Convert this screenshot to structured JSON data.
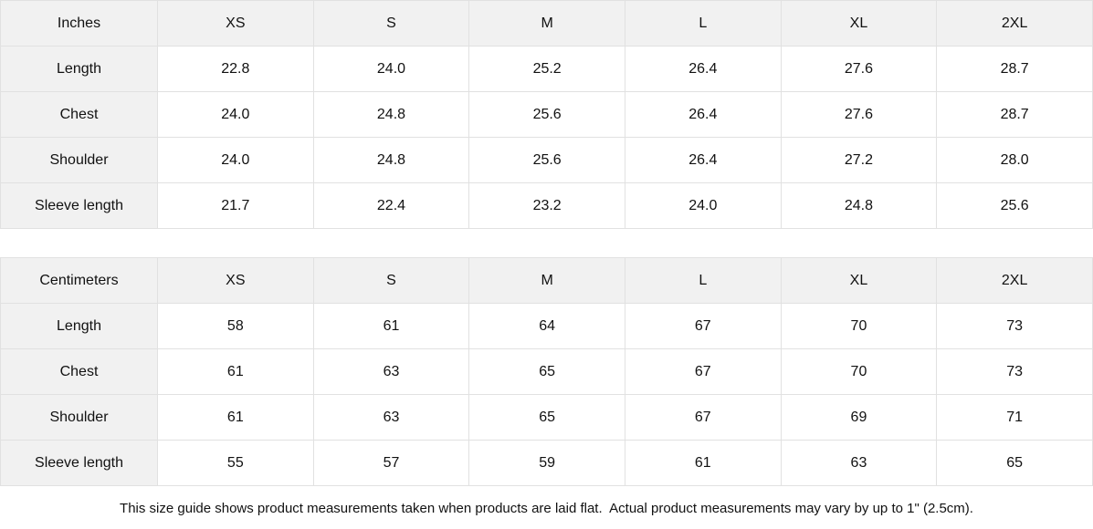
{
  "tables": [
    {
      "unit_label": "Inches",
      "sizes": [
        "XS",
        "S",
        "M",
        "L",
        "XL",
        "2XL"
      ],
      "rows": [
        {
          "label": "Length",
          "values": [
            "22.8",
            "24.0",
            "25.2",
            "26.4",
            "27.6",
            "28.7"
          ]
        },
        {
          "label": "Chest",
          "values": [
            "24.0",
            "24.8",
            "25.6",
            "26.4",
            "27.6",
            "28.7"
          ]
        },
        {
          "label": "Shoulder",
          "values": [
            "24.0",
            "24.8",
            "25.6",
            "26.4",
            "27.2",
            "28.0"
          ]
        },
        {
          "label": "Sleeve length",
          "values": [
            "21.7",
            "22.4",
            "23.2",
            "24.0",
            "24.8",
            "25.6"
          ]
        }
      ]
    },
    {
      "unit_label": "Centimeters",
      "sizes": [
        "XS",
        "S",
        "M",
        "L",
        "XL",
        "2XL"
      ],
      "rows": [
        {
          "label": "Length",
          "values": [
            "58",
            "61",
            "64",
            "67",
            "70",
            "73"
          ]
        },
        {
          "label": "Chest",
          "values": [
            "61",
            "63",
            "65",
            "67",
            "70",
            "73"
          ]
        },
        {
          "label": "Shoulder",
          "values": [
            "61",
            "63",
            "65",
            "67",
            "69",
            "71"
          ]
        },
        {
          "label": "Sleeve length",
          "values": [
            "55",
            "57",
            "59",
            "61",
            "63",
            "65"
          ]
        }
      ]
    }
  ],
  "footer": {
    "note": "This size guide shows product measurements taken when products are laid flat.  Actual product measurements may vary by up to 1\" (2.5cm)."
  },
  "colors": {
    "header_bg": "#f1f1f1",
    "cell_bg": "#ffffff",
    "border": "#e1e1e1",
    "text": "#111111"
  }
}
